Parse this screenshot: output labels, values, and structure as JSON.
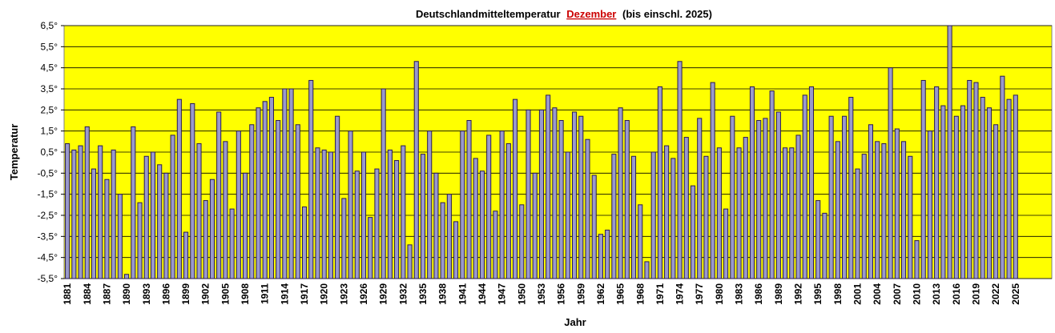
{
  "chart_data": {
    "type": "bar",
    "title": "Deutschlandmitteltemperatur",
    "title_highlight": "Dezember",
    "title_suffix": "(bis einschl. 2025)",
    "xlabel": "Jahr",
    "ylabel": "Temperatur",
    "ylim": [
      -5.5,
      6.5
    ],
    "yticks": [
      "6,5°",
      "5,5°",
      "4,5°",
      "3,5°",
      "2,5°",
      "1,5°",
      "0,5°",
      "-0,5°",
      "-1,5°",
      "-2,5°",
      "-3,5°",
      "-4,5°",
      "-5,5°"
    ],
    "grid": true,
    "colors": {
      "plot_background": "#ffff00",
      "bar_fill": "#9999cc",
      "bar_stroke": "#2a1a55",
      "highlight": "#cc0000"
    },
    "x": [
      1881,
      1882,
      1883,
      1884,
      1885,
      1886,
      1887,
      1888,
      1889,
      1890,
      1891,
      1892,
      1893,
      1894,
      1895,
      1896,
      1897,
      1898,
      1899,
      1900,
      1901,
      1902,
      1903,
      1904,
      1905,
      1906,
      1907,
      1908,
      1909,
      1910,
      1911,
      1912,
      1913,
      1914,
      1915,
      1916,
      1917,
      1918,
      1919,
      1920,
      1921,
      1922,
      1923,
      1924,
      1925,
      1926,
      1927,
      1928,
      1929,
      1930,
      1931,
      1932,
      1933,
      1934,
      1935,
      1936,
      1937,
      1938,
      1939,
      1940,
      1941,
      1942,
      1943,
      1944,
      1945,
      1946,
      1947,
      1948,
      1949,
      1950,
      1951,
      1952,
      1953,
      1954,
      1955,
      1956,
      1957,
      1958,
      1959,
      1960,
      1961,
      1962,
      1963,
      1964,
      1965,
      1966,
      1967,
      1968,
      1969,
      1970,
      1971,
      1972,
      1973,
      1974,
      1975,
      1976,
      1977,
      1978,
      1979,
      1980,
      1981,
      1982,
      1983,
      1984,
      1985,
      1986,
      1987,
      1988,
      1989,
      1990,
      1991,
      1992,
      1993,
      1994,
      1995,
      1996,
      1997,
      1998,
      1999,
      2000,
      2001,
      2002,
      2003,
      2004,
      2005,
      2006,
      2007,
      2008,
      2009,
      2010,
      2011,
      2012,
      2013,
      2014,
      2015,
      2016,
      2017,
      2018,
      2019,
      2020,
      2021,
      2022,
      2023,
      2024,
      2025
    ],
    "xtick_labels": [
      "1881",
      "1884",
      "1887",
      "1890",
      "1893",
      "1896",
      "1899",
      "1902",
      "1905",
      "1908",
      "1911",
      "1914",
      "1917",
      "1920",
      "1923",
      "1926",
      "1929",
      "1932",
      "1935",
      "1938",
      "1941",
      "1944",
      "1947",
      "1950",
      "1953",
      "1956",
      "1959",
      "1962",
      "1965",
      "1968",
      "1971",
      "1974",
      "1977",
      "1980",
      "1983",
      "1986",
      "1989",
      "1992",
      "1995",
      "1998",
      "2001",
      "2004",
      "2007",
      "2010",
      "2013",
      "2016",
      "2019",
      "2022",
      "2025"
    ],
    "values": [
      0.9,
      0.6,
      0.8,
      1.7,
      -0.3,
      0.8,
      -0.8,
      0.6,
      -1.5,
      -5.3,
      1.7,
      -1.9,
      0.3,
      0.5,
      -0.1,
      -0.5,
      1.3,
      3.0,
      -3.3,
      2.8,
      0.9,
      -1.8,
      -0.8,
      2.4,
      1.0,
      -2.2,
      1.5,
      -0.5,
      1.8,
      2.6,
      2.9,
      3.1,
      2.0,
      3.5,
      3.5,
      1.8,
      -2.1,
      3.9,
      0.7,
      0.6,
      0.5,
      2.2,
      -1.7,
      1.5,
      -0.4,
      0.5,
      -2.6,
      -0.3,
      3.5,
      0.6,
      0.1,
      0.8,
      -3.9,
      4.8,
      0.4,
      1.5,
      -0.5,
      -1.9,
      -1.5,
      -2.8,
      1.5,
      2.0,
      0.2,
      -0.4,
      1.3,
      -2.3,
      1.5,
      0.9,
      3.0,
      -2.0,
      2.5,
      -0.5,
      2.5,
      3.2,
      2.6,
      2.0,
      0.5,
      2.4,
      2.2,
      1.1,
      -0.6,
      -3.4,
      -3.2,
      0.4,
      2.6,
      2.0,
      0.3,
      -2.0,
      -4.7,
      0.5,
      3.6,
      0.8,
      0.2,
      4.8,
      1.2,
      -1.1,
      2.1,
      0.3,
      3.8,
      0.7,
      -2.2,
      2.2,
      0.7,
      1.2,
      3.6,
      2.0,
      2.1,
      3.4,
      2.4,
      0.7,
      0.7,
      1.3,
      3.2,
      3.6,
      -1.8,
      -2.4,
      2.2,
      1.0,
      2.2,
      3.1,
      -0.3,
      0.4,
      1.8,
      1.0,
      0.9,
      4.5,
      1.6,
      1.0,
      0.3,
      -3.7,
      3.9,
      1.5,
      3.6,
      2.7,
      6.5,
      2.2,
      2.7,
      3.9,
      3.8,
      3.1,
      2.6,
      1.8,
      4.1,
      3.0,
      3.2
    ]
  }
}
